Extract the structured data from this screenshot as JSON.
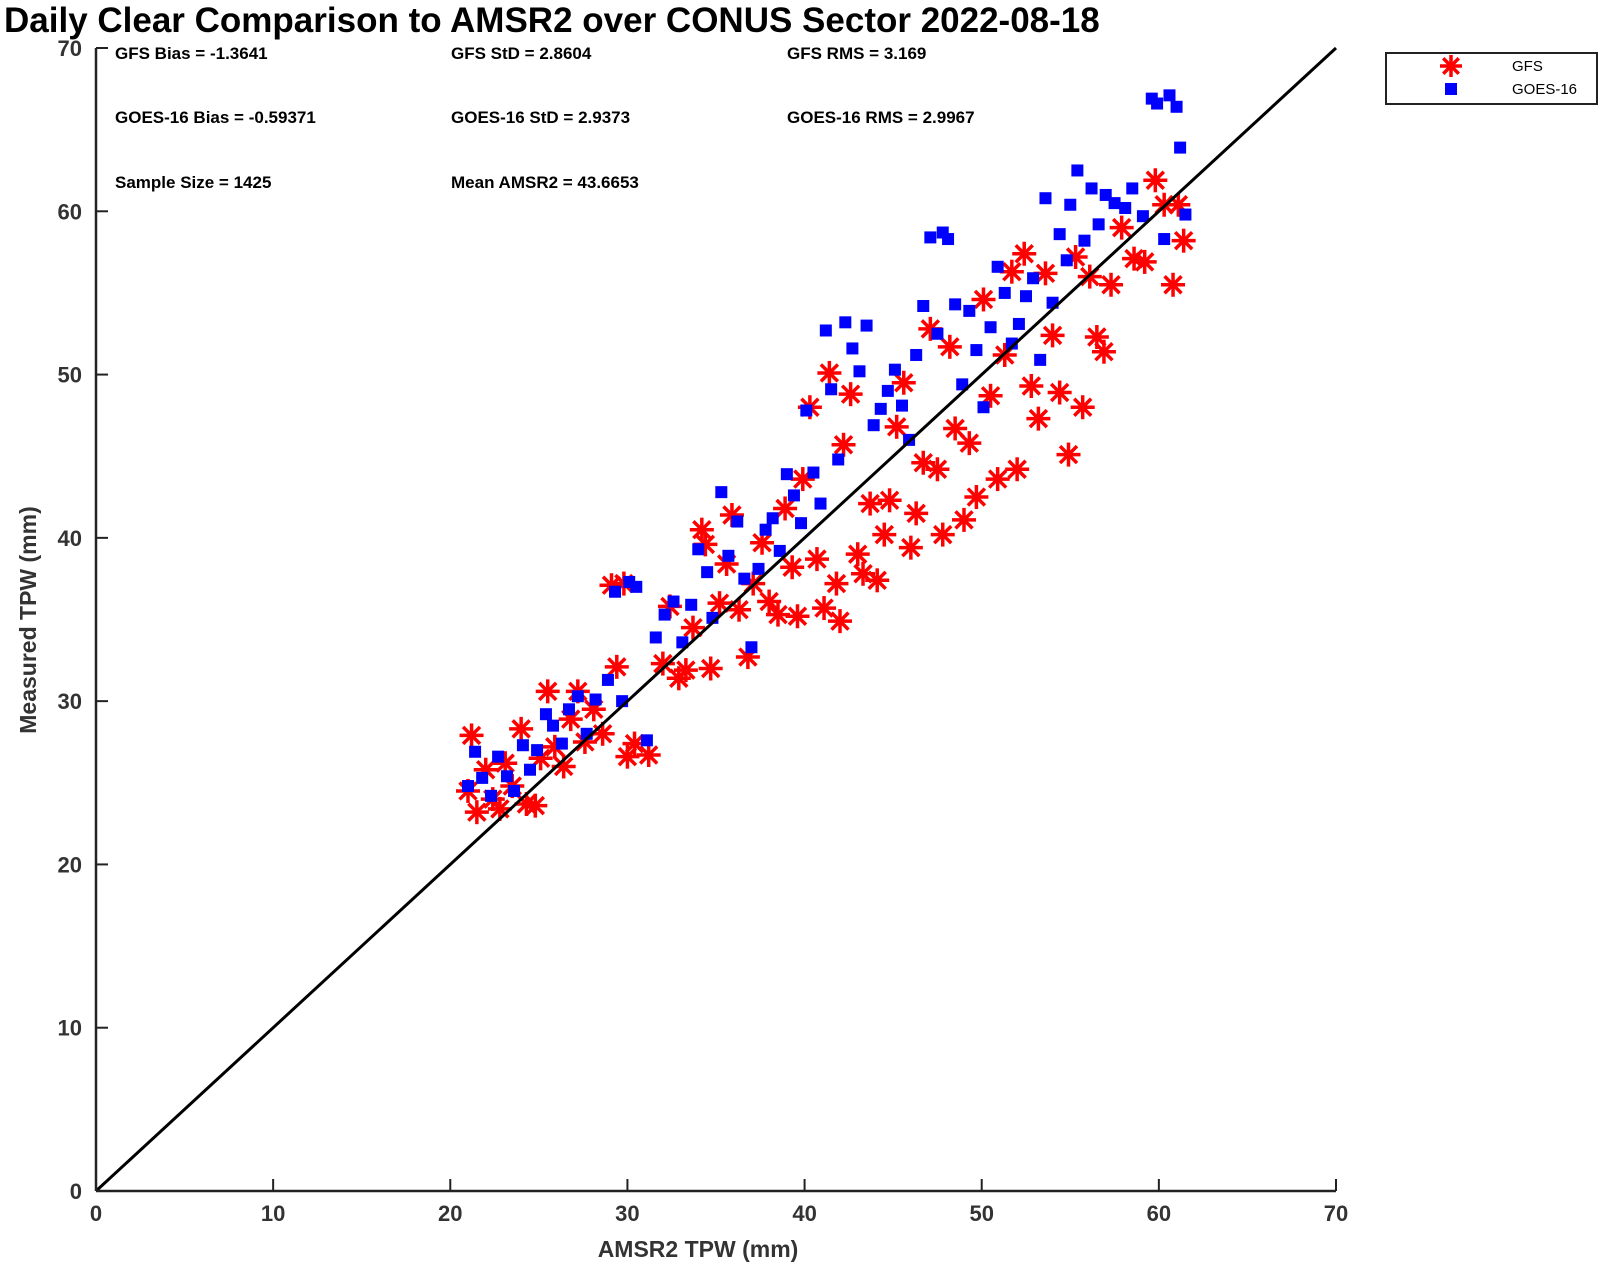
{
  "chart_data": {
    "type": "scatter",
    "title": "Daily Clear Comparison to AMSR2 over CONUS Sector 2022-08-18",
    "xlabel": "AMSR2 TPW (mm)",
    "ylabel": "Measured TPW (mm)",
    "xlim": [
      0,
      70
    ],
    "ylim": [
      0,
      70
    ],
    "xticks": [
      "0",
      "10",
      "20",
      "30",
      "40",
      "50",
      "60",
      "70"
    ],
    "yticks": [
      "0",
      "10",
      "20",
      "30",
      "40",
      "50",
      "60",
      "70"
    ],
    "grid": false,
    "legend_position": "outside-top-right",
    "reference_line": {
      "x": [
        0,
        70
      ],
      "y": [
        0,
        70
      ],
      "color": "#000000"
    },
    "stats": [
      "GFS Bias = -1.3641",
      "GFS StD = 2.8604",
      "GFS RMS = 3.169",
      "GOES-16 Bias = -0.59371",
      "GOES-16 StD = 2.9373",
      "GOES-16 RMS = 2.9967",
      "Sample Size = 1425",
      "Mean AMSR2 = 43.6653"
    ],
    "series": [
      {
        "name": "GFS",
        "marker": "asterisk",
        "color": "#ff0000",
        "points": [
          [
            21.0,
            24.5
          ],
          [
            21.2,
            27.9
          ],
          [
            21.5,
            23.2
          ],
          [
            22.0,
            25.8
          ],
          [
            22.4,
            24.0
          ],
          [
            22.8,
            23.4
          ],
          [
            23.1,
            26.2
          ],
          [
            23.5,
            24.8
          ],
          [
            24.0,
            28.3
          ],
          [
            24.3,
            23.7
          ],
          [
            24.8,
            23.6
          ],
          [
            25.1,
            26.5
          ],
          [
            25.5,
            30.6
          ],
          [
            25.9,
            27.2
          ],
          [
            26.4,
            26.0
          ],
          [
            26.8,
            28.9
          ],
          [
            27.2,
            30.6
          ],
          [
            27.6,
            27.5
          ],
          [
            28.1,
            29.5
          ],
          [
            28.6,
            28.0
          ],
          [
            29.1,
            37.1
          ],
          [
            29.4,
            32.1
          ],
          [
            29.8,
            37.2
          ],
          [
            30.0,
            26.6
          ],
          [
            30.4,
            27.4
          ],
          [
            31.2,
            26.7
          ],
          [
            32.0,
            32.3
          ],
          [
            32.4,
            35.8
          ],
          [
            32.9,
            31.4
          ],
          [
            33.3,
            31.9
          ],
          [
            33.7,
            34.5
          ],
          [
            34.2,
            40.5
          ],
          [
            34.4,
            39.6
          ],
          [
            34.7,
            32.0
          ],
          [
            35.2,
            36.0
          ],
          [
            35.6,
            38.4
          ],
          [
            35.9,
            41.4
          ],
          [
            36.3,
            35.6
          ],
          [
            36.8,
            32.7
          ],
          [
            37.1,
            37.2
          ],
          [
            37.6,
            39.7
          ],
          [
            38.0,
            36.1
          ],
          [
            38.5,
            35.3
          ],
          [
            38.9,
            41.8
          ],
          [
            39.3,
            38.2
          ],
          [
            39.6,
            35.2
          ],
          [
            39.9,
            43.6
          ],
          [
            40.3,
            48.0
          ],
          [
            40.7,
            38.7
          ],
          [
            41.1,
            35.7
          ],
          [
            41.4,
            50.1
          ],
          [
            41.8,
            37.2
          ],
          [
            42.0,
            34.9
          ],
          [
            42.2,
            45.7
          ],
          [
            42.6,
            48.8
          ],
          [
            43.0,
            39.0
          ],
          [
            43.3,
            37.8
          ],
          [
            43.7,
            42.1
          ],
          [
            44.1,
            37.4
          ],
          [
            44.5,
            40.2
          ],
          [
            44.8,
            42.3
          ],
          [
            45.2,
            46.8
          ],
          [
            45.6,
            49.5
          ],
          [
            46.0,
            39.4
          ],
          [
            46.3,
            41.5
          ],
          [
            46.7,
            44.6
          ],
          [
            47.1,
            52.8
          ],
          [
            47.5,
            44.2
          ],
          [
            47.8,
            40.2
          ],
          [
            48.2,
            51.7
          ],
          [
            48.5,
            46.7
          ],
          [
            49.0,
            41.1
          ],
          [
            49.3,
            45.8
          ],
          [
            49.7,
            42.5
          ],
          [
            50.1,
            54.6
          ],
          [
            50.5,
            48.7
          ],
          [
            50.9,
            43.6
          ],
          [
            51.3,
            51.2
          ],
          [
            51.7,
            56.3
          ],
          [
            52.0,
            44.2
          ],
          [
            52.4,
            57.4
          ],
          [
            52.8,
            49.3
          ],
          [
            53.2,
            47.3
          ],
          [
            53.6,
            56.2
          ],
          [
            54.0,
            52.4
          ],
          [
            54.4,
            48.9
          ],
          [
            54.9,
            45.1
          ],
          [
            55.3,
            57.2
          ],
          [
            55.7,
            48.0
          ],
          [
            56.1,
            56.0
          ],
          [
            56.5,
            52.3
          ],
          [
            56.9,
            51.4
          ],
          [
            57.3,
            55.5
          ],
          [
            57.9,
            59.0
          ],
          [
            58.6,
            57.1
          ],
          [
            59.2,
            56.9
          ],
          [
            59.8,
            61.9
          ],
          [
            60.3,
            60.4
          ],
          [
            60.8,
            55.5
          ],
          [
            61.1,
            60.4
          ],
          [
            61.4,
            58.2
          ]
        ]
      },
      {
        "name": "GOES-16",
        "marker": "square",
        "color": "#0000ff",
        "points": [
          [
            21.0,
            24.8
          ],
          [
            21.4,
            26.9
          ],
          [
            21.8,
            25.3
          ],
          [
            22.3,
            24.2
          ],
          [
            22.7,
            26.6
          ],
          [
            23.2,
            25.4
          ],
          [
            23.6,
            24.5
          ],
          [
            24.1,
            27.3
          ],
          [
            24.5,
            25.8
          ],
          [
            24.9,
            27.0
          ],
          [
            25.4,
            29.2
          ],
          [
            25.8,
            28.5
          ],
          [
            26.3,
            27.4
          ],
          [
            26.7,
            29.5
          ],
          [
            27.2,
            30.3
          ],
          [
            27.7,
            28.0
          ],
          [
            28.2,
            30.1
          ],
          [
            28.9,
            31.3
          ],
          [
            29.3,
            36.7
          ],
          [
            29.7,
            30.0
          ],
          [
            30.1,
            37.3
          ],
          [
            30.5,
            37.0
          ],
          [
            31.1,
            27.6
          ],
          [
            31.6,
            33.9
          ],
          [
            32.1,
            35.3
          ],
          [
            32.6,
            36.1
          ],
          [
            33.1,
            33.6
          ],
          [
            33.6,
            35.9
          ],
          [
            34.0,
            39.3
          ],
          [
            34.5,
            37.9
          ],
          [
            34.8,
            35.1
          ],
          [
            35.3,
            42.8
          ],
          [
            35.7,
            38.9
          ],
          [
            36.2,
            41.0
          ],
          [
            36.6,
            37.5
          ],
          [
            37.0,
            33.3
          ],
          [
            37.4,
            38.1
          ],
          [
            37.8,
            40.5
          ],
          [
            38.2,
            41.2
          ],
          [
            38.6,
            39.2
          ],
          [
            39.0,
            43.9
          ],
          [
            39.4,
            42.6
          ],
          [
            39.8,
            40.9
          ],
          [
            40.1,
            47.8
          ],
          [
            40.5,
            44.0
          ],
          [
            40.9,
            42.1
          ],
          [
            41.2,
            52.7
          ],
          [
            41.5,
            49.1
          ],
          [
            41.9,
            44.8
          ],
          [
            42.3,
            53.2
          ],
          [
            42.7,
            51.6
          ],
          [
            43.1,
            50.2
          ],
          [
            43.5,
            53.0
          ],
          [
            43.9,
            46.9
          ],
          [
            44.3,
            47.9
          ],
          [
            44.7,
            49.0
          ],
          [
            45.1,
            50.3
          ],
          [
            45.5,
            48.1
          ],
          [
            45.9,
            46.0
          ],
          [
            46.3,
            51.2
          ],
          [
            46.7,
            54.2
          ],
          [
            47.1,
            58.4
          ],
          [
            47.5,
            52.5
          ],
          [
            47.8,
            58.7
          ],
          [
            48.1,
            58.3
          ],
          [
            48.5,
            54.3
          ],
          [
            48.9,
            49.4
          ],
          [
            49.3,
            53.9
          ],
          [
            49.7,
            51.5
          ],
          [
            50.1,
            48.0
          ],
          [
            50.5,
            52.9
          ],
          [
            50.9,
            56.6
          ],
          [
            51.3,
            55.0
          ],
          [
            51.7,
            51.9
          ],
          [
            52.1,
            53.1
          ],
          [
            52.5,
            54.8
          ],
          [
            52.9,
            55.9
          ],
          [
            53.3,
            50.9
          ],
          [
            53.6,
            60.8
          ],
          [
            54.0,
            54.4
          ],
          [
            54.4,
            58.6
          ],
          [
            54.8,
            57.0
          ],
          [
            55.0,
            60.4
          ],
          [
            55.4,
            62.5
          ],
          [
            55.8,
            58.2
          ],
          [
            56.2,
            61.4
          ],
          [
            56.6,
            59.2
          ],
          [
            57.0,
            61.0
          ],
          [
            57.5,
            60.5
          ],
          [
            58.1,
            60.2
          ],
          [
            58.5,
            61.4
          ],
          [
            59.1,
            59.7
          ],
          [
            59.6,
            66.9
          ],
          [
            59.9,
            66.6
          ],
          [
            60.3,
            58.3
          ],
          [
            60.6,
            67.1
          ],
          [
            61.0,
            66.4
          ],
          [
            61.2,
            63.9
          ],
          [
            61.5,
            59.8
          ]
        ]
      }
    ]
  }
}
